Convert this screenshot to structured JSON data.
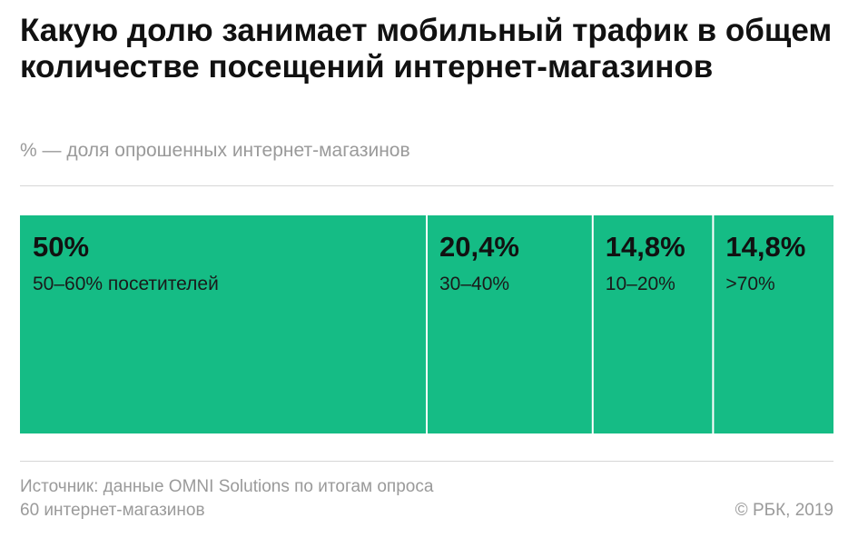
{
  "header": {
    "title": "Какую долю занимает мобильный трафик в общем количестве посещений интернет-магазинов",
    "subtitle": "% — доля опрошенных интернет-магазинов"
  },
  "chart_data": {
    "type": "treemap",
    "segments": [
      {
        "value_label": "50%",
        "value": 50,
        "category": "50–60% посетителей"
      },
      {
        "value_label": "20,4%",
        "value": 20.4,
        "category": "30–40%"
      },
      {
        "value_label": "14,8%",
        "value": 14.8,
        "category": "10–20%"
      },
      {
        "value_label": "14,8%",
        "value": 14.8,
        "category": ">70%"
      }
    ],
    "colors": {
      "fill": "#15bc85",
      "divider": "#ffffff"
    }
  },
  "footer": {
    "source_line1": "Источник: данные OMNI Solutions по итогам опроса",
    "source_line2": "60 интернет-магазинов",
    "copyright": "© РБК, 2019"
  }
}
